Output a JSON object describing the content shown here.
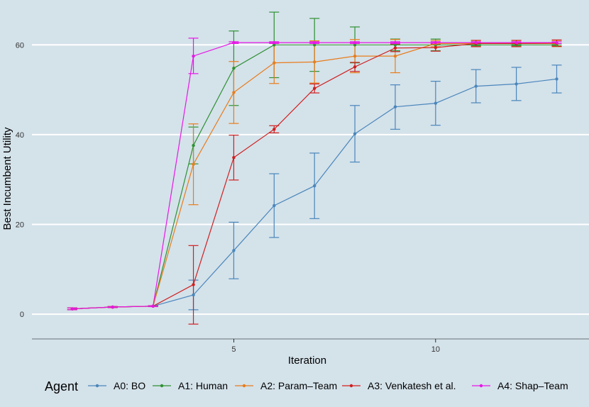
{
  "chart_data": {
    "type": "line",
    "title": "",
    "xlabel": "Iteration",
    "ylabel": "Best Incumbent Utility",
    "xlim": [
      0.0,
      13.8
    ],
    "ylim": [
      -5.5,
      70
    ],
    "xticks": [
      5,
      10
    ],
    "yticks": [
      0,
      20,
      40,
      60
    ],
    "grid": true,
    "legend": {
      "title": "Agent",
      "position": "bottom"
    },
    "x": [
      1,
      2,
      3,
      4,
      5,
      6,
      7,
      8,
      9,
      10,
      11,
      12,
      13
    ],
    "series": [
      {
        "name": "A0: BO",
        "color": "#4a86bb",
        "values": [
          1.2,
          1.6,
          1.8,
          4.3,
          14.2,
          24.2,
          28.6,
          40.2,
          46.2,
          47.0,
          50.8,
          51.3,
          52.4
        ],
        "err_low": [
          1.0,
          1.5,
          1.7,
          1.0,
          7.9,
          17.1,
          21.3,
          33.9,
          41.2,
          42.1,
          47.1,
          47.6,
          49.3
        ],
        "err_high": [
          1.4,
          1.7,
          1.9,
          7.6,
          20.5,
          31.3,
          35.9,
          46.5,
          51.1,
          51.9,
          54.5,
          55.0,
          55.5
        ]
      },
      {
        "name": "A1: Human",
        "color": "#2e9132",
        "values": [
          1.2,
          1.6,
          1.8,
          37.6,
          54.8,
          60.0,
          60.0,
          60.0,
          60.0,
          60.0,
          60.0,
          60.0,
          60.0
        ],
        "err_low": [
          1.0,
          1.5,
          1.7,
          33.5,
          46.5,
          52.7,
          54.1,
          56.0,
          58.7,
          58.7,
          59.8,
          59.8,
          59.8
        ],
        "err_high": [
          1.4,
          1.7,
          1.9,
          41.7,
          63.1,
          67.3,
          65.9,
          64.0,
          61.3,
          61.3,
          60.2,
          60.2,
          60.2
        ]
      },
      {
        "name": "A2: Param–Team",
        "color": "#e87d1b",
        "values": [
          1.2,
          1.6,
          1.8,
          33.4,
          49.4,
          56.0,
          56.2,
          57.5,
          57.5,
          60.3,
          60.3,
          60.3,
          60.3
        ],
        "err_low": [
          1.0,
          1.5,
          1.7,
          24.4,
          42.5,
          51.4,
          51.5,
          53.8,
          53.8,
          59.6,
          59.6,
          59.6,
          59.6
        ],
        "err_high": [
          1.4,
          1.7,
          1.9,
          42.4,
          56.3,
          60.6,
          60.9,
          61.2,
          61.2,
          61.0,
          61.0,
          61.0,
          61.0
        ]
      },
      {
        "name": "A3: Venkatesh et al.",
        "color": "#d01f1f",
        "values": [
          1.2,
          1.6,
          1.8,
          6.6,
          34.9,
          41.2,
          50.3,
          55.1,
          59.3,
          59.4,
          60.3,
          60.3,
          60.4
        ],
        "err_low": [
          1.0,
          1.5,
          1.7,
          -2.2,
          29.9,
          40.4,
          49.3,
          54.1,
          58.5,
          58.6,
          59.6,
          59.6,
          59.7
        ],
        "err_high": [
          1.4,
          1.7,
          1.9,
          15.3,
          39.9,
          42.0,
          51.3,
          56.1,
          60.1,
          60.2,
          61.0,
          61.0,
          61.1
        ]
      },
      {
        "name": "A4: Shap–Team",
        "color": "#e617e6",
        "values": [
          1.2,
          1.6,
          1.8,
          57.5,
          60.5,
          60.5,
          60.5,
          60.5,
          60.5,
          60.5,
          60.5,
          60.5,
          60.5
        ],
        "err_low": [
          1.0,
          1.5,
          1.7,
          53.6,
          60.3,
          60.3,
          60.3,
          60.3,
          60.3,
          60.3,
          60.3,
          60.3,
          60.3
        ],
        "err_high": [
          1.4,
          1.7,
          1.9,
          61.5,
          60.7,
          60.7,
          60.7,
          60.7,
          60.7,
          60.7,
          60.7,
          60.7,
          60.7
        ]
      }
    ]
  }
}
